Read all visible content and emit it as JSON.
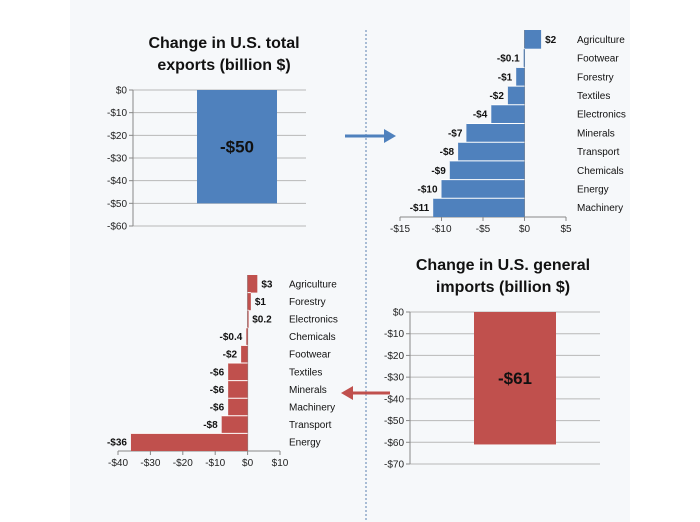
{
  "colors": {
    "exports": "#4f81bd",
    "imports": "#c0504d",
    "arrow_blue": "#4f81bd",
    "arrow_red": "#c0504d",
    "divider": "#5b7fb0",
    "grid": "#b8b8b8"
  },
  "chart_data": [
    {
      "type": "bar",
      "title_lines": [
        "Change in U.S. total",
        "exports (billion $)"
      ],
      "categories": [
        ""
      ],
      "values": [
        -50
      ],
      "data_labels": [
        "-$50"
      ],
      "ylim": [
        -60,
        0
      ],
      "yticks": [
        0,
        -10,
        -20,
        -30,
        -40,
        -50,
        -60
      ],
      "ytick_labels": [
        "$0",
        "-$10",
        "-$20",
        "-$30",
        "-$40",
        "-$50",
        "-$60"
      ],
      "grid": true,
      "color": "#4f81bd"
    },
    {
      "type": "bar",
      "orientation": "horizontal",
      "categories": [
        "Agriculture",
        "Footwear",
        "Forestry",
        "Textiles",
        "Electronics",
        "Minerals",
        "Transport",
        "Chemicals",
        "Energy",
        "Machinery"
      ],
      "values": [
        2,
        -0.1,
        -1,
        -2,
        -4,
        -7,
        -8,
        -9,
        -10,
        -11
      ],
      "data_labels": [
        "$2",
        "-$0.1",
        "-$1",
        "-$2",
        "-$4",
        "-$7",
        "-$8",
        "-$9",
        "-$10",
        "-$11"
      ],
      "xlim": [
        -15,
        5
      ],
      "xticks": [
        -15,
        -10,
        -5,
        0,
        5
      ],
      "xtick_labels": [
        "-$15",
        "-$10",
        "-$5",
        "$0",
        "$5"
      ],
      "color": "#4f81bd"
    },
    {
      "type": "bar",
      "orientation": "horizontal",
      "categories": [
        "Agriculture",
        "Forestry",
        "Electronics",
        "Chemicals",
        "Footwear",
        "Textiles",
        "Minerals",
        "Machinery",
        "Transport",
        "Energy"
      ],
      "values": [
        3,
        1,
        0.2,
        -0.4,
        -2,
        -6,
        -6,
        -6,
        -8,
        -36
      ],
      "data_labels": [
        "$3",
        "$1",
        "$0.2",
        "-$0.4",
        "-$2",
        "-$6",
        "-$6",
        "-$6",
        "-$8",
        "-$36"
      ],
      "xlim": [
        -40,
        10
      ],
      "xticks": [
        -40,
        -30,
        -20,
        -10,
        0,
        10
      ],
      "xtick_labels": [
        "-$40",
        "-$30",
        "-$20",
        "-$10",
        "$0",
        "$10"
      ],
      "color": "#c0504d"
    },
    {
      "type": "bar",
      "title_lines": [
        "Change in U.S. general",
        "imports (billion $)"
      ],
      "categories": [
        ""
      ],
      "values": [
        -61
      ],
      "data_labels": [
        "-$61"
      ],
      "ylim": [
        -70,
        0
      ],
      "yticks": [
        0,
        -10,
        -20,
        -30,
        -40,
        -50,
        -60,
        -70
      ],
      "ytick_labels": [
        "$0",
        "-$10",
        "-$20",
        "-$30",
        "-$40",
        "-$50",
        "-$60",
        "-$70"
      ],
      "grid": true,
      "color": "#c0504d"
    }
  ]
}
